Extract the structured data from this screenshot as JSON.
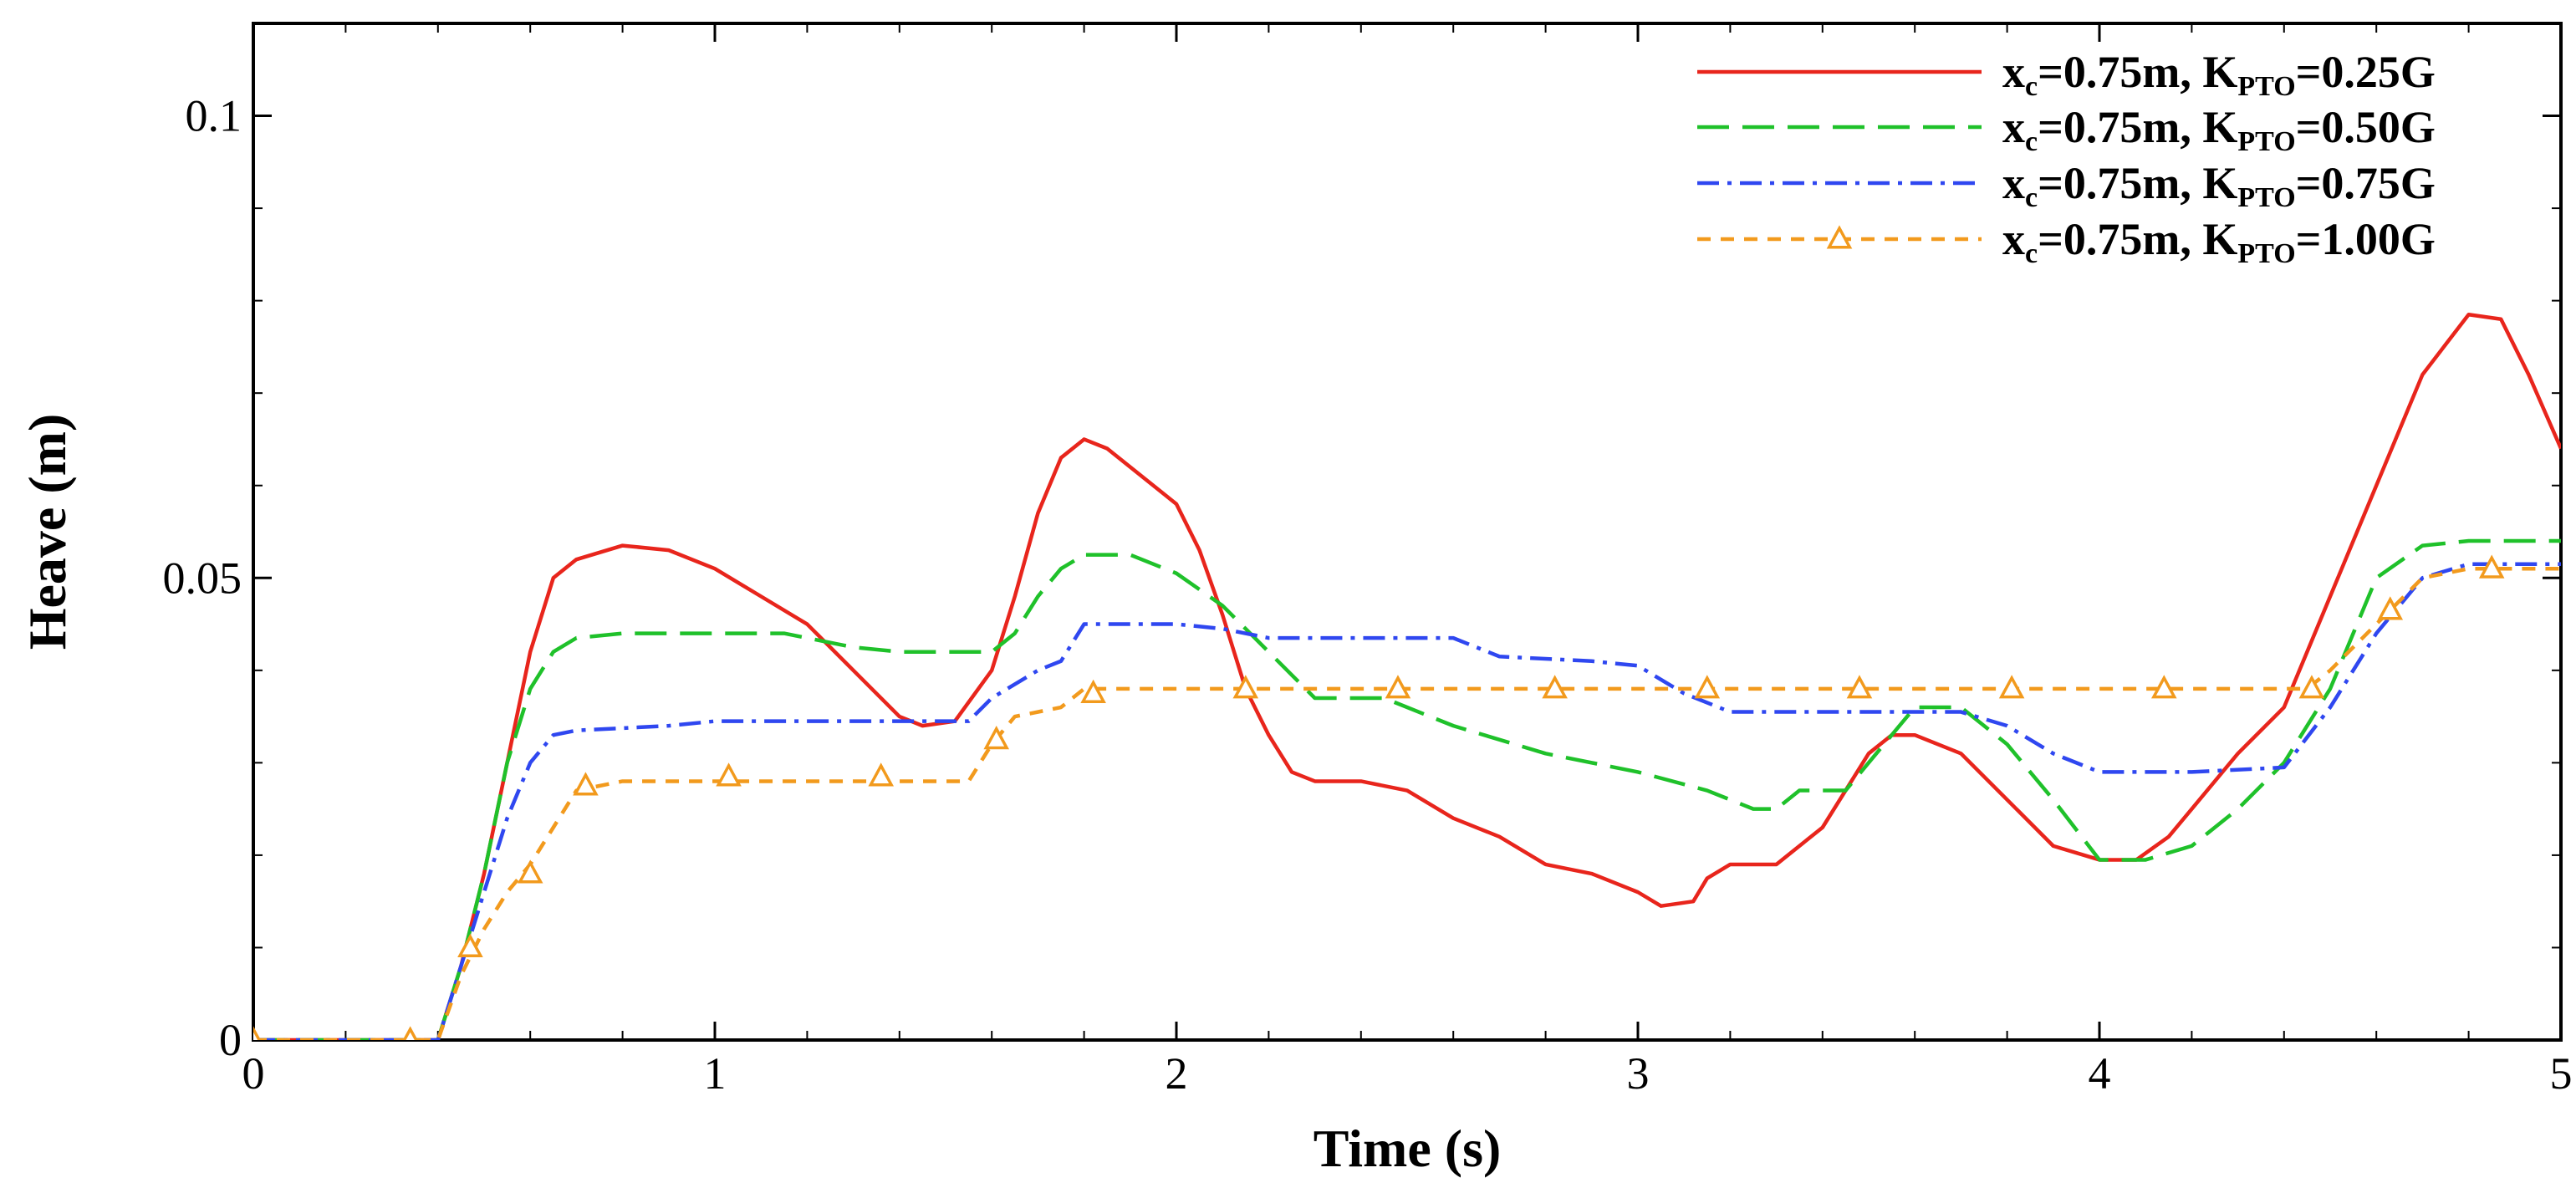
{
  "chart_data": {
    "type": "line",
    "title": "",
    "xlabel": "Time (s)",
    "ylabel": "Heave (m)",
    "xlim": [
      0,
      5
    ],
    "ylim": [
      0,
      0.11
    ],
    "xticks": [
      0,
      1,
      2,
      3,
      4,
      5
    ],
    "yticks": [
      0,
      0.05,
      0.1
    ],
    "xtick_labels": [
      "0",
      "1",
      "2",
      "3",
      "4",
      "5"
    ],
    "ytick_labels": [
      "0",
      "0.05",
      "0.1"
    ],
    "grid": false,
    "legend_position": "top-right",
    "series": [
      {
        "legend_parts": [
          "x",
          "c",
          "=0.75m, K",
          "PTO",
          "=0.25G"
        ],
        "color": "#e8251c",
        "line_style": "solid",
        "marker": "none",
        "points": [
          [
            0,
            0
          ],
          [
            0.35,
            0
          ],
          [
            0.4,
            0
          ],
          [
            0.45,
            0.008
          ],
          [
            0.5,
            0.018
          ],
          [
            0.55,
            0.03
          ],
          [
            0.6,
            0.042
          ],
          [
            0.65,
            0.05
          ],
          [
            0.7,
            0.052
          ],
          [
            0.8,
            0.0535
          ],
          [
            0.9,
            0.053
          ],
          [
            1.0,
            0.051
          ],
          [
            1.1,
            0.048
          ],
          [
            1.2,
            0.045
          ],
          [
            1.3,
            0.04
          ],
          [
            1.4,
            0.035
          ],
          [
            1.45,
            0.034
          ],
          [
            1.52,
            0.0345
          ],
          [
            1.6,
            0.04
          ],
          [
            1.65,
            0.048
          ],
          [
            1.7,
            0.057
          ],
          [
            1.75,
            0.063
          ],
          [
            1.8,
            0.065
          ],
          [
            1.85,
            0.064
          ],
          [
            1.9,
            0.062
          ],
          [
            2.0,
            0.058
          ],
          [
            2.05,
            0.053
          ],
          [
            2.1,
            0.046
          ],
          [
            2.15,
            0.038
          ],
          [
            2.2,
            0.033
          ],
          [
            2.25,
            0.029
          ],
          [
            2.3,
            0.028
          ],
          [
            2.4,
            0.028
          ],
          [
            2.5,
            0.027
          ],
          [
            2.6,
            0.024
          ],
          [
            2.7,
            0.022
          ],
          [
            2.8,
            0.019
          ],
          [
            2.9,
            0.018
          ],
          [
            3.0,
            0.016
          ],
          [
            3.05,
            0.0145
          ],
          [
            3.12,
            0.015
          ],
          [
            3.15,
            0.0175
          ],
          [
            3.2,
            0.019
          ],
          [
            3.3,
            0.019
          ],
          [
            3.4,
            0.023
          ],
          [
            3.5,
            0.031
          ],
          [
            3.55,
            0.033
          ],
          [
            3.6,
            0.033
          ],
          [
            3.7,
            0.031
          ],
          [
            3.8,
            0.026
          ],
          [
            3.9,
            0.021
          ],
          [
            4.0,
            0.0195
          ],
          [
            4.08,
            0.0195
          ],
          [
            4.15,
            0.022
          ],
          [
            4.2,
            0.025
          ],
          [
            4.3,
            0.031
          ],
          [
            4.4,
            0.036
          ],
          [
            4.5,
            0.048
          ],
          [
            4.6,
            0.06
          ],
          [
            4.7,
            0.072
          ],
          [
            4.8,
            0.0785
          ],
          [
            4.87,
            0.078
          ],
          [
            4.93,
            0.072
          ],
          [
            5.0,
            0.064
          ]
        ]
      },
      {
        "legend_parts": [
          "x",
          "c",
          "=0.75m, K",
          "PTO",
          "=0.50G"
        ],
        "color": "#1fc12a",
        "line_style": "dashed",
        "marker": "none",
        "points": [
          [
            0,
            0
          ],
          [
            0.35,
            0
          ],
          [
            0.4,
            0
          ],
          [
            0.45,
            0.008
          ],
          [
            0.5,
            0.018
          ],
          [
            0.55,
            0.03
          ],
          [
            0.6,
            0.038
          ],
          [
            0.65,
            0.042
          ],
          [
            0.7,
            0.0435
          ],
          [
            0.8,
            0.044
          ],
          [
            1.0,
            0.044
          ],
          [
            1.15,
            0.044
          ],
          [
            1.3,
            0.0425
          ],
          [
            1.4,
            0.042
          ],
          [
            1.6,
            0.042
          ],
          [
            1.65,
            0.044
          ],
          [
            1.7,
            0.048
          ],
          [
            1.75,
            0.051
          ],
          [
            1.8,
            0.0525
          ],
          [
            1.9,
            0.0525
          ],
          [
            2.0,
            0.0505
          ],
          [
            2.1,
            0.047
          ],
          [
            2.2,
            0.042
          ],
          [
            2.3,
            0.037
          ],
          [
            2.45,
            0.037
          ],
          [
            2.6,
            0.034
          ],
          [
            2.8,
            0.031
          ],
          [
            3.0,
            0.029
          ],
          [
            3.15,
            0.027
          ],
          [
            3.25,
            0.025
          ],
          [
            3.3,
            0.025
          ],
          [
            3.35,
            0.027
          ],
          [
            3.45,
            0.027
          ],
          [
            3.5,
            0.03
          ],
          [
            3.55,
            0.033
          ],
          [
            3.6,
            0.036
          ],
          [
            3.7,
            0.036
          ],
          [
            3.8,
            0.032
          ],
          [
            3.9,
            0.026
          ],
          [
            4.0,
            0.0195
          ],
          [
            4.1,
            0.0195
          ],
          [
            4.2,
            0.021
          ],
          [
            4.3,
            0.025
          ],
          [
            4.4,
            0.03
          ],
          [
            4.5,
            0.038
          ],
          [
            4.6,
            0.05
          ],
          [
            4.7,
            0.0535
          ],
          [
            4.8,
            0.054
          ],
          [
            5.0,
            0.054
          ]
        ]
      },
      {
        "legend_parts": [
          "x",
          "c",
          "=0.75m, K",
          "PTO",
          "=0.75G"
        ],
        "color": "#2f47f0",
        "line_style": "dashdot",
        "marker": "none",
        "points": [
          [
            0,
            0
          ],
          [
            0.35,
            0
          ],
          [
            0.4,
            0
          ],
          [
            0.45,
            0.008
          ],
          [
            0.5,
            0.016
          ],
          [
            0.55,
            0.024
          ],
          [
            0.6,
            0.03
          ],
          [
            0.65,
            0.033
          ],
          [
            0.7,
            0.0335
          ],
          [
            0.9,
            0.034
          ],
          [
            1.0,
            0.0345
          ],
          [
            1.4,
            0.0345
          ],
          [
            1.55,
            0.0345
          ],
          [
            1.6,
            0.037
          ],
          [
            1.7,
            0.04
          ],
          [
            1.75,
            0.041
          ],
          [
            1.8,
            0.045
          ],
          [
            2.0,
            0.045
          ],
          [
            2.1,
            0.0445
          ],
          [
            2.2,
            0.0435
          ],
          [
            2.6,
            0.0435
          ],
          [
            2.7,
            0.0415
          ],
          [
            2.9,
            0.041
          ],
          [
            3.0,
            0.0405
          ],
          [
            3.1,
            0.0375
          ],
          [
            3.2,
            0.0355
          ],
          [
            3.4,
            0.0355
          ],
          [
            3.7,
            0.0355
          ],
          [
            3.8,
            0.034
          ],
          [
            3.9,
            0.031
          ],
          [
            4.0,
            0.029
          ],
          [
            4.2,
            0.029
          ],
          [
            4.4,
            0.0295
          ],
          [
            4.5,
            0.036
          ],
          [
            4.6,
            0.044
          ],
          [
            4.7,
            0.05
          ],
          [
            4.8,
            0.0515
          ],
          [
            5.0,
            0.0515
          ]
        ]
      },
      {
        "legend_parts": [
          "x",
          "c",
          "=0.75m, K",
          "PTO",
          "=1.00G"
        ],
        "color": "#f29a1d",
        "line_style": "dotted",
        "marker": "triangle",
        "points": [
          [
            0,
            0
          ],
          [
            0.35,
            0
          ],
          [
            0.4,
            0
          ],
          [
            0.45,
            0.007
          ],
          [
            0.5,
            0.012
          ],
          [
            0.55,
            0.016
          ],
          [
            0.6,
            0.019
          ],
          [
            0.65,
            0.023
          ],
          [
            0.7,
            0.027
          ],
          [
            0.8,
            0.028
          ],
          [
            1.0,
            0.028
          ],
          [
            1.55,
            0.028
          ],
          [
            1.6,
            0.032
          ],
          [
            1.65,
            0.035
          ],
          [
            1.75,
            0.036
          ],
          [
            1.8,
            0.038
          ],
          [
            2.0,
            0.038
          ],
          [
            4.45,
            0.038
          ],
          [
            4.5,
            0.04
          ],
          [
            4.6,
            0.045
          ],
          [
            4.7,
            0.05
          ],
          [
            4.8,
            0.051
          ],
          [
            5.0,
            0.051
          ]
        ],
        "marker_points": [
          [
            0,
            0
          ],
          [
            0.34,
            0
          ],
          [
            0.47,
            0.01
          ],
          [
            0.6,
            0.018
          ],
          [
            0.72,
            0.0275
          ],
          [
            1.03,
            0.0285
          ],
          [
            1.36,
            0.0285
          ],
          [
            1.61,
            0.0325
          ],
          [
            1.82,
            0.0375
          ],
          [
            2.15,
            0.038
          ],
          [
            2.48,
            0.038
          ],
          [
            2.82,
            0.038
          ],
          [
            3.15,
            0.038
          ],
          [
            3.48,
            0.038
          ],
          [
            3.81,
            0.038
          ],
          [
            4.14,
            0.038
          ],
          [
            4.46,
            0.038
          ],
          [
            4.63,
            0.0465
          ],
          [
            4.85,
            0.051
          ]
        ]
      }
    ]
  }
}
